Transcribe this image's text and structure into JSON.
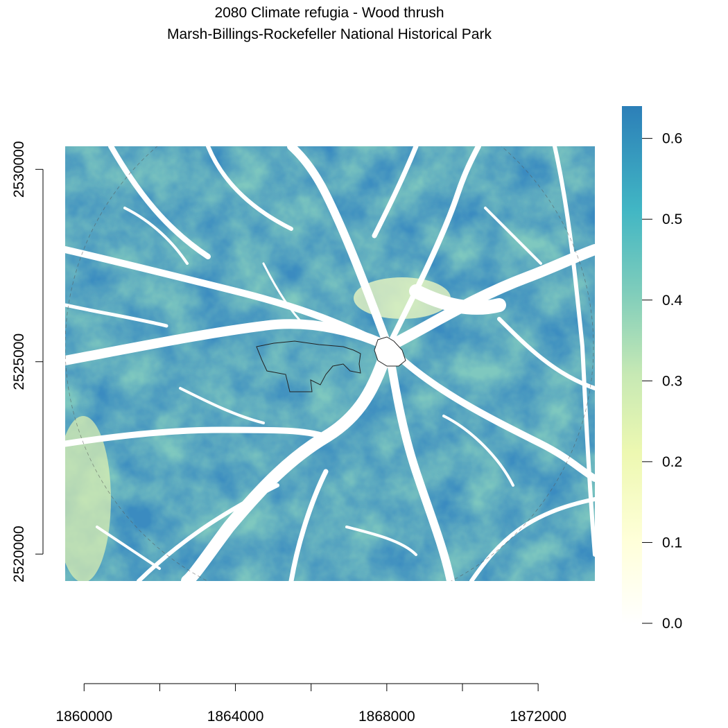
{
  "title": {
    "line1": "2080 Climate refugia - Wood thrush",
    "line2": "Marsh-Billings-Rockefeller National Historical Park"
  },
  "map": {
    "x_range": [
      1859500,
      1873500
    ],
    "y_range": [
      2519300,
      2530600
    ],
    "x_ticks": [
      1860000,
      1862000,
      1864000,
      1866000,
      1868000,
      1870000,
      1872000
    ],
    "x_tick_labels": [
      "1860000",
      "1864000",
      "1868000",
      "1872000"
    ],
    "y_ticks": [
      2520000,
      2525000,
      2530000
    ],
    "y_tick_labels": [
      "2520000",
      "2525000",
      "2530000"
    ],
    "value_range": [
      0.0,
      0.64
    ]
  },
  "legend": {
    "tick_labels": [
      "0.0",
      "0.1",
      "0.2",
      "0.3",
      "0.4",
      "0.5",
      "0.6"
    ],
    "ticks": [
      0.0,
      0.1,
      0.2,
      0.3,
      0.4,
      0.5,
      0.6
    ],
    "max": 0.64,
    "colors": [
      "#ffffff",
      "#ffffd9",
      "#edf8b1",
      "#c7e9b4",
      "#7fcdbb",
      "#41b6c4",
      "#2c7fb8"
    ]
  }
}
